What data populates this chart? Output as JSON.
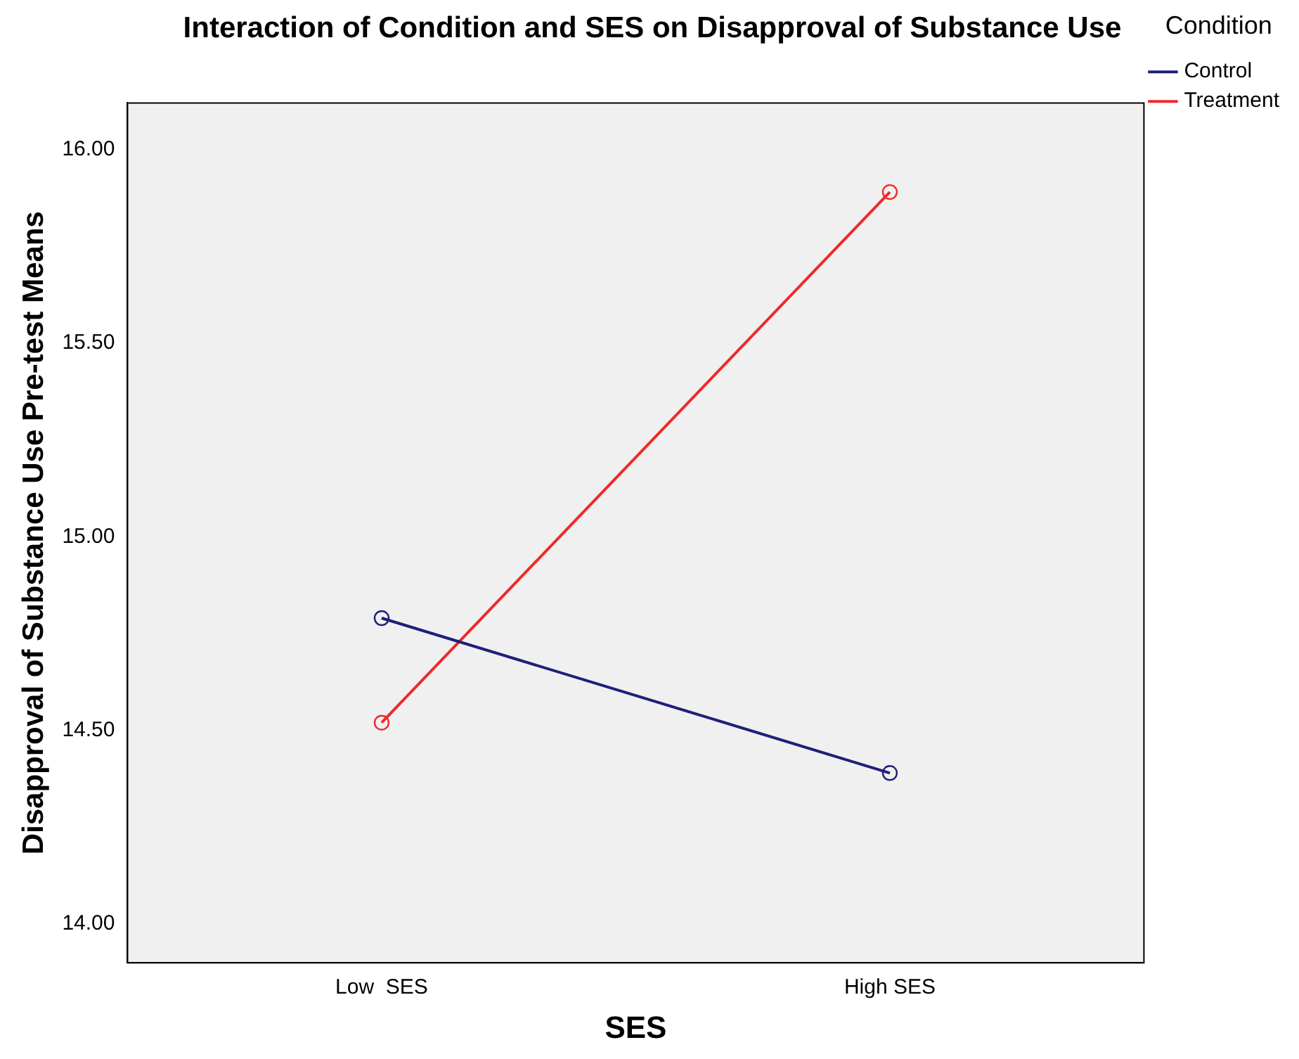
{
  "chart_data": {
    "type": "line",
    "title": "Interaction of Condition and SES on Disapproval of Substance Use",
    "xlabel": "SES",
    "ylabel": "Disapproval of Substance Use Pre-test Means",
    "legend_title": "Condition",
    "categories": [
      "Low  SES",
      "High SES"
    ],
    "series": [
      {
        "name": "Control",
        "color": "#1f1f7a",
        "values": [
          14.79,
          14.39
        ]
      },
      {
        "name": "Treatment",
        "color": "#ee2a2a",
        "values": [
          14.52,
          15.89
        ]
      }
    ],
    "ylim": [
      13.9,
      16.12
    ],
    "yticks": [
      {
        "value": 14,
        "label": "14.00"
      },
      {
        "value": 14.5,
        "label": "14.50"
      },
      {
        "value": 15,
        "label": "15.00"
      },
      {
        "value": 15.5,
        "label": "15.50"
      },
      {
        "value": 16,
        "label": "16.00"
      }
    ],
    "grid": false,
    "legend": "top right",
    "marker": "circle",
    "line_style": "solid"
  }
}
